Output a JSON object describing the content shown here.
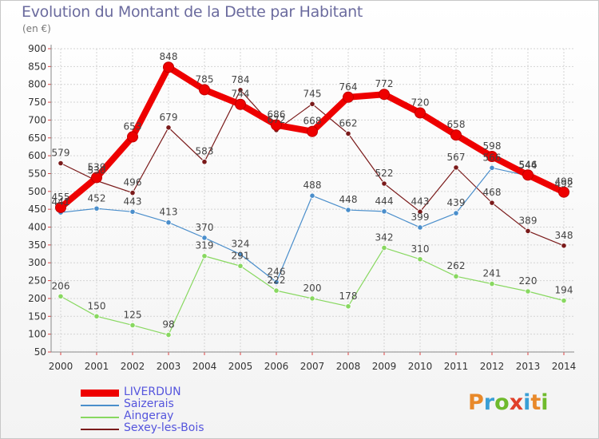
{
  "title": "Evolution du Montant de la Dette par Habitant",
  "subtitle": "(en €)",
  "logo_text": "Proxiti",
  "chart_data": {
    "type": "line",
    "x": [
      "2000",
      "2001",
      "2002",
      "2003",
      "2004",
      "2005",
      "2006",
      "2007",
      "2008",
      "2009",
      "2010",
      "2011",
      "2012",
      "2013",
      "2014"
    ],
    "ylim": [
      50,
      900
    ],
    "yticks": [
      50,
      100,
      150,
      200,
      250,
      300,
      350,
      400,
      450,
      500,
      550,
      600,
      650,
      700,
      750,
      800,
      850,
      900
    ],
    "grid": true,
    "legend_position": "bottom-left",
    "series": [
      {
        "name": "LIVERDUN",
        "color": "#ee0000",
        "width": 8,
        "values": [
          455,
          539,
          653,
          848,
          785,
          744,
          686,
          668,
          764,
          772,
          720,
          658,
          598,
          546,
          498
        ]
      },
      {
        "name": "Saizerais",
        "color": "#4a8ecb",
        "width": 1.2,
        "values": [
          441,
          452,
          443,
          413,
          370,
          324,
          246,
          488,
          448,
          444,
          399,
          439,
          566,
          544,
          492
        ]
      },
      {
        "name": "Aingeray",
        "color": "#88d860",
        "width": 1.2,
        "values": [
          206,
          150,
          125,
          98,
          319,
          291,
          222,
          200,
          178,
          342,
          310,
          262,
          241,
          220,
          194
        ]
      },
      {
        "name": "Sexey-les-Bois",
        "color": "#7a1a1a",
        "width": 1.2,
        "values": [
          579,
          530,
          496,
          679,
          583,
          784,
          672,
          745,
          662,
          522,
          443,
          567,
          468,
          389,
          348
        ]
      }
    ]
  }
}
